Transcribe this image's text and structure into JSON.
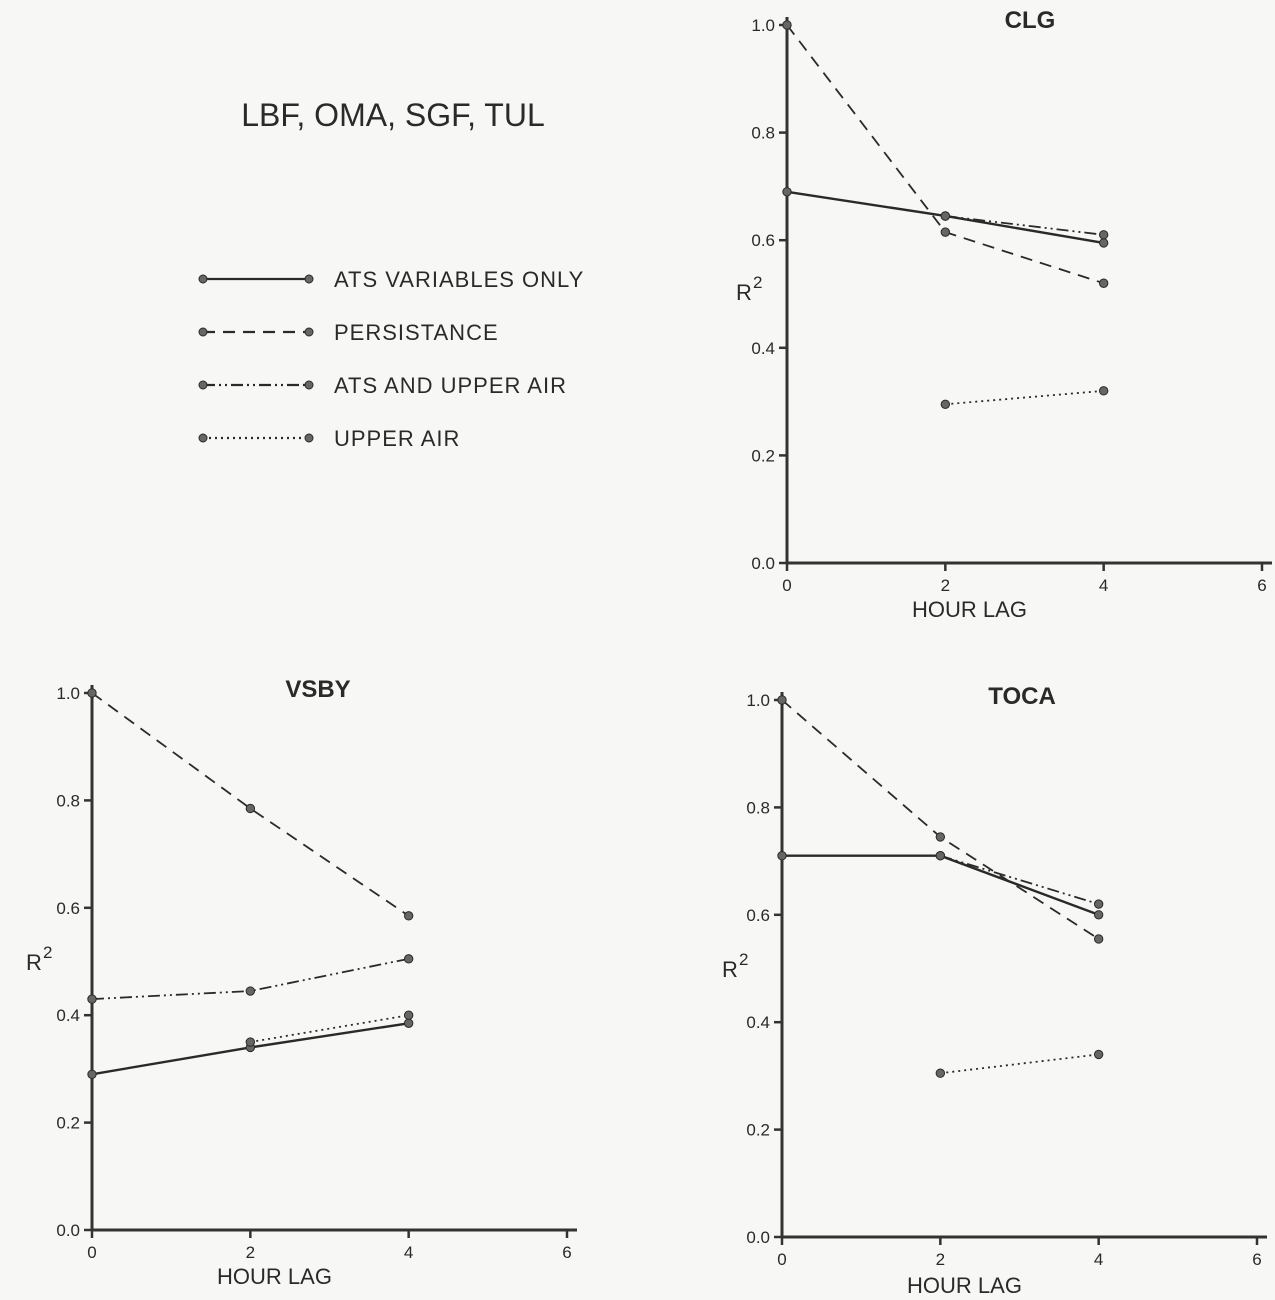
{
  "header": {
    "title": "LBF, OMA, SGF, TUL"
  },
  "legend": [
    {
      "key": "ats",
      "label": "ATS  VARIABLES ONLY",
      "style": "solid"
    },
    {
      "key": "persistence",
      "label": "PERSISTANCE",
      "style": "dashed"
    },
    {
      "key": "ats_upper",
      "label": "ATS  AND UPPER  AIR",
      "style": "dashdot"
    },
    {
      "key": "upper",
      "label": "UPPER  AIR",
      "style": "dotted"
    }
  ],
  "styles": {
    "solid": "",
    "dashed": "12,8",
    "dashdot": "12,4,2,4,2,4",
    "dotted": "2,4"
  },
  "colors": {
    "ink": "#2a2a2a",
    "point": "#666666",
    "paper": "#f7f7f5"
  },
  "chart_data": [
    {
      "id": "clg",
      "type": "line",
      "title": "CLG",
      "xlabel": "HOUR    LAG",
      "ylabel": "R",
      "ylabel_sup": "2",
      "xlim": [
        0,
        6
      ],
      "ylim": [
        0,
        1.0
      ],
      "xticks": [
        "0",
        "2",
        "4",
        "6"
      ],
      "yticks": [
        "0.0",
        "0.2",
        "0.4",
        "0.6",
        "0.8",
        "1.0"
      ],
      "series": [
        {
          "key": "ats",
          "x": [
            0,
            2,
            4
          ],
          "y": [
            0.69,
            0.645,
            0.595
          ]
        },
        {
          "key": "persistence",
          "x": [
            0,
            2,
            4
          ],
          "y": [
            1.0,
            0.615,
            0.52
          ]
        },
        {
          "key": "ats_upper",
          "x": [
            2,
            4
          ],
          "y": [
            0.645,
            0.61
          ]
        },
        {
          "key": "upper",
          "x": [
            2,
            4
          ],
          "y": [
            0.295,
            0.32
          ]
        }
      ]
    },
    {
      "id": "vsby",
      "type": "line",
      "title": "VSBY",
      "xlabel": "HOUR    LAG",
      "ylabel": "R",
      "ylabel_sup": "2",
      "xlim": [
        0,
        6
      ],
      "ylim": [
        0,
        1.0
      ],
      "xticks": [
        "0",
        "2",
        "4",
        "6"
      ],
      "yticks": [
        "0.0",
        "0.2",
        "0.4",
        "0.6",
        "0.8",
        "1.0"
      ],
      "series": [
        {
          "key": "ats",
          "x": [
            0,
            2,
            4
          ],
          "y": [
            0.29,
            0.34,
            0.385
          ]
        },
        {
          "key": "persistence",
          "x": [
            0,
            2,
            4
          ],
          "y": [
            1.0,
            0.785,
            0.585
          ]
        },
        {
          "key": "ats_upper",
          "x": [
            0,
            2,
            4
          ],
          "y": [
            0.43,
            0.445,
            0.505
          ]
        },
        {
          "key": "upper",
          "x": [
            2,
            4
          ],
          "y": [
            0.35,
            0.4
          ]
        }
      ]
    },
    {
      "id": "toca",
      "type": "line",
      "title": "TOCA",
      "xlabel": "HOUR    LAG",
      "ylabel": "R",
      "ylabel_sup": "2",
      "xlim": [
        0,
        6
      ],
      "ylim": [
        0,
        1.0
      ],
      "xticks": [
        "0",
        "2",
        "4",
        "6"
      ],
      "yticks": [
        "0.0",
        "0.2",
        "0.4",
        "0.6",
        "0.8",
        "1.0"
      ],
      "series": [
        {
          "key": "ats",
          "x": [
            0,
            2,
            4
          ],
          "y": [
            0.71,
            0.71,
            0.6
          ]
        },
        {
          "key": "persistence",
          "x": [
            0,
            2,
            4
          ],
          "y": [
            1.0,
            0.745,
            0.555
          ]
        },
        {
          "key": "ats_upper",
          "x": [
            2,
            4
          ],
          "y": [
            0.71,
            0.62
          ]
        },
        {
          "key": "upper",
          "x": [
            2,
            4
          ],
          "y": [
            0.305,
            0.34
          ]
        }
      ]
    }
  ]
}
